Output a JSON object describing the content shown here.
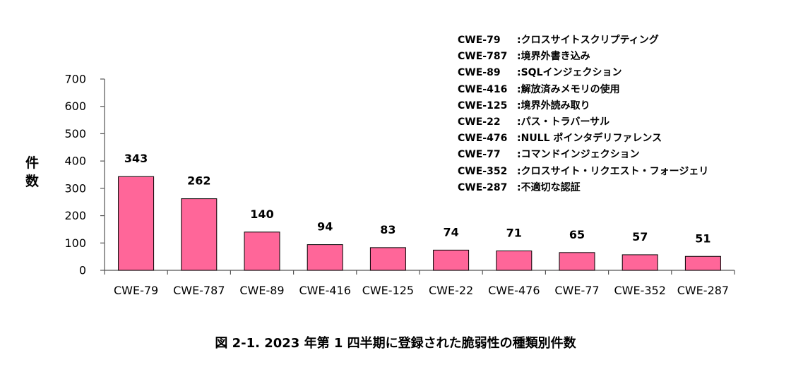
{
  "chart_data": {
    "type": "bar",
    "ylabel": "件数",
    "yticks": [
      0,
      100,
      200,
      300,
      400,
      500,
      600,
      700
    ],
    "ylim": [
      0,
      700
    ],
    "grid": false,
    "categories": [
      "CWE-79",
      "CWE-787",
      "CWE-89",
      "CWE-416",
      "CWE-125",
      "CWE-22",
      "CWE-476",
      "CWE-77",
      "CWE-352",
      "CWE-287"
    ],
    "values": [
      343,
      262,
      140,
      94,
      83,
      74,
      71,
      65,
      57,
      51
    ],
    "bar_color": "#ff6699",
    "bar_stroke": "#000000",
    "legend_placement": "top-right",
    "legend": [
      {
        "code": "CWE-79",
        "desc": ":クロスサイトスクリプティング"
      },
      {
        "code": "CWE-787",
        "desc": ":境界外書き込み"
      },
      {
        "code": "CWE-89",
        "desc": ":SQLインジェクション"
      },
      {
        "code": "CWE-416",
        "desc": ":解放済みメモリの使用"
      },
      {
        "code": "CWE-125",
        "desc": ":境界外読み取り"
      },
      {
        "code": "CWE-22",
        "desc": ":パス・トラバーサル"
      },
      {
        "code": "CWE-476",
        "desc": ":NULL ポインタデリファレンス"
      },
      {
        "code": "CWE-77",
        "desc": ":コマンドインジェクション"
      },
      {
        "code": "CWE-352",
        "desc": ":クロスサイト・リクエスト・フォージェリ"
      },
      {
        "code": "CWE-287",
        "desc": ":不適切な認証"
      }
    ],
    "caption": "図 2-1. 2023 年第 1 四半期に登録された脆弱性の種類別件数"
  }
}
